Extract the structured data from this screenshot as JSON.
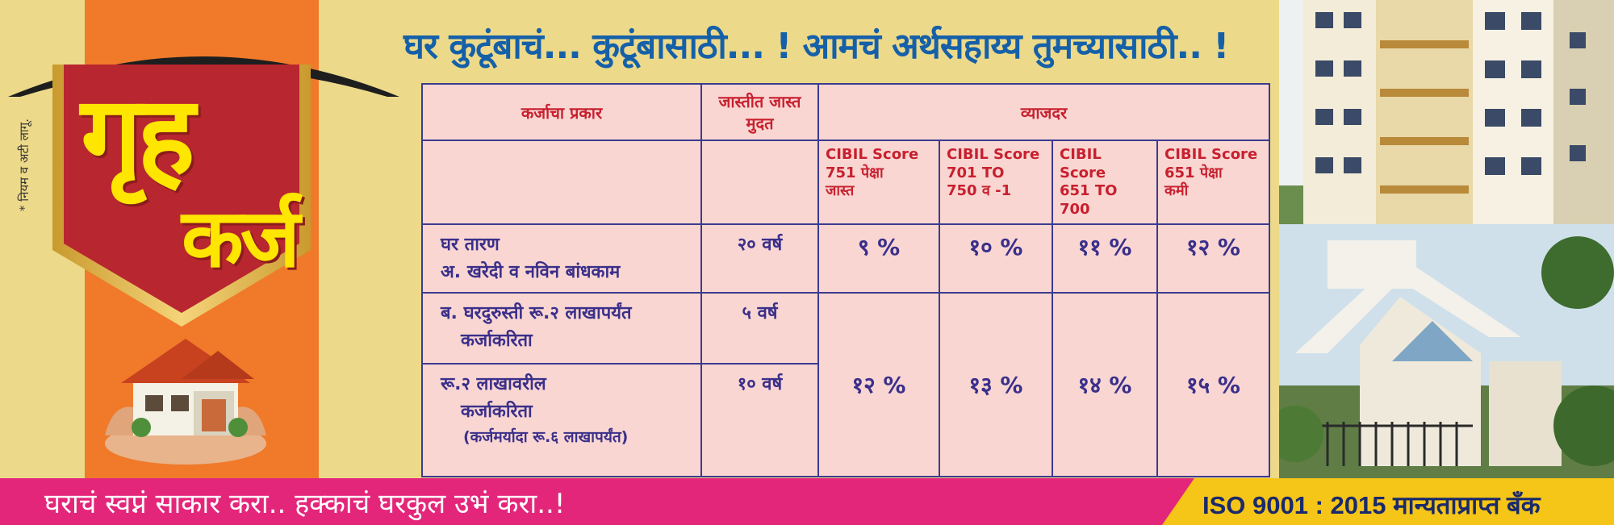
{
  "side_note": "* नियम व अटी लागू.",
  "title": {
    "line1": "गृह",
    "line2": "कर्ज"
  },
  "headline": "घर कुटूंबाचं... कुटूंबासाठी... ! आमचं अर्थसहाय्य तुमच्यासाठी.. !",
  "table": {
    "col_type": "कर्जाचा प्रकार",
    "col_term": "जास्तीत जास्त मुदत",
    "col_rate": "व्याजदर",
    "cibil": [
      {
        "label": "CIBIL Score",
        "range": "751 पेक्षा",
        "note": "जास्त"
      },
      {
        "label": "CIBIL Score",
        "range": "701 TO",
        "note": "750 व -1"
      },
      {
        "label": "CIBIL Score",
        "range": "651 TO",
        "note": "700"
      },
      {
        "label": "CIBIL Score",
        "range": "651 पेक्षा",
        "note": "कमी"
      }
    ],
    "rows": [
      {
        "type_a": "घर तारण",
        "type_b": "अ. खरेदी व नविन बांधकाम",
        "term": "२० वर्ष",
        "rates": [
          "९ %",
          "१० %",
          "११ %",
          "१२ %"
        ]
      },
      {
        "type_a": "ब. घरदुरुस्ती रू.२ लाखापर्यंत",
        "type_b": "कर्जाकरिता",
        "term": "५ वर्ष"
      },
      {
        "type_a": "रू.२ लाखावरील",
        "type_b": "कर्जाकरिता",
        "type_c": "(कर्जमर्यादा रू.६ लाखापर्यंत)",
        "term": "१० वर्ष"
      }
    ],
    "merged_rates": [
      "१२ %",
      "१३ %",
      "१४ %",
      "१५ %"
    ]
  },
  "slogan": "घराचं स्वप्नं साकार करा.. हक्काचं घरकुल उभं करा..!",
  "iso": "ISO 9001 : 2015 मान्यताप्राप्त बँक",
  "colors": {
    "background": "#ecd98a",
    "orange": "#f07a2a",
    "shield": "#b8262f",
    "title": "#ffe600",
    "headline": "#1560a8",
    "table_bg": "#f9d6d2",
    "pink_bar": "#e4267a",
    "yellow_bar": "#f5c518"
  },
  "icons": [
    "house-in-hands-icon",
    "roof-icon",
    "shield-icon"
  ]
}
